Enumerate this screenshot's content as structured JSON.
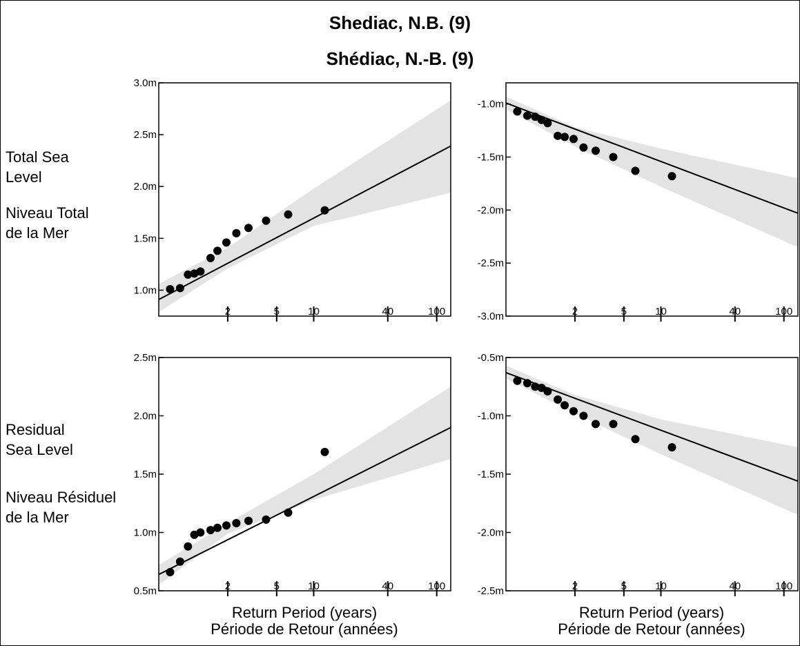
{
  "title_en": "Shediac, N.B. (9)",
  "title_fr": "Shédiac, N.-B. (9)",
  "row_labels": {
    "total_en": [
      "Total Sea",
      "Level"
    ],
    "total_fr": [
      "Niveau Total",
      "de la Mer"
    ],
    "residual_en": [
      "Residual",
      "Sea Level"
    ],
    "residual_fr": [
      "Niveau Résiduel",
      "de la Mer"
    ]
  },
  "xlabel_en": "Return Period (years)",
  "xlabel_fr": "Période de Retour (années)",
  "colors": {
    "band": "#e3e3e3",
    "line": "#000000",
    "points": "#000000"
  },
  "chart_data": [
    {
      "type": "scatter",
      "panel": "total-sea-level-high",
      "xscale": "log",
      "xlim": [
        0.55,
        130
      ],
      "ylim": [
        0.75,
        3.0
      ],
      "x_ticks": [
        2,
        5,
        10,
        40,
        100
      ],
      "y_ticks": [
        1.0,
        1.5,
        2.0,
        2.5,
        3.0
      ],
      "y_tick_labels": [
        "1.0m",
        "1.5m",
        "2.0m",
        "2.5m",
        "3.0m"
      ],
      "points": [
        [
          0.68,
          1.01
        ],
        [
          0.82,
          1.02
        ],
        [
          0.95,
          1.15
        ],
        [
          1.07,
          1.16
        ],
        [
          1.2,
          1.18
        ],
        [
          1.45,
          1.31
        ],
        [
          1.65,
          1.38
        ],
        [
          1.95,
          1.46
        ],
        [
          2.35,
          1.55
        ],
        [
          2.95,
          1.6
        ],
        [
          4.1,
          1.67
        ],
        [
          6.2,
          1.73
        ],
        [
          12.3,
          1.77
        ]
      ],
      "fit": [
        [
          0.55,
          0.91
        ],
        [
          130,
          2.39
        ]
      ],
      "band_upper": [
        [
          0.55,
          1.06
        ],
        [
          2,
          1.41
        ],
        [
          10,
          1.98
        ],
        [
          130,
          2.83
        ]
      ],
      "band_lower": [
        [
          0.55,
          0.79
        ],
        [
          2,
          1.21
        ],
        [
          10,
          1.62
        ],
        [
          130,
          1.94
        ]
      ]
    },
    {
      "type": "scatter",
      "panel": "total-sea-level-low",
      "xscale": "log",
      "xlim": [
        0.55,
        130
      ],
      "ylim": [
        -3.0,
        -0.8
      ],
      "x_ticks": [
        2,
        5,
        10,
        40,
        100
      ],
      "y_ticks": [
        -3.0,
        -2.5,
        -2.0,
        -1.5,
        -1.0
      ],
      "y_tick_labels": [
        "-3.0m",
        "-2.5m",
        "-2.0m",
        "-1.5m",
        "-1.0m"
      ],
      "points": [
        [
          0.68,
          -1.07
        ],
        [
          0.82,
          -1.11
        ],
        [
          0.95,
          -1.12
        ],
        [
          1.07,
          -1.15
        ],
        [
          1.2,
          -1.18
        ],
        [
          1.45,
          -1.3
        ],
        [
          1.65,
          -1.31
        ],
        [
          1.95,
          -1.33
        ],
        [
          2.35,
          -1.41
        ],
        [
          2.95,
          -1.44
        ],
        [
          4.1,
          -1.5
        ],
        [
          6.2,
          -1.63
        ],
        [
          12.3,
          -1.68
        ]
      ],
      "fit": [
        [
          0.55,
          -0.99
        ],
        [
          130,
          -2.03
        ]
      ],
      "band_upper": [
        [
          0.55,
          -0.93
        ],
        [
          2,
          -1.22
        ],
        [
          10,
          -1.42
        ],
        [
          130,
          -1.7
        ]
      ],
      "band_lower": [
        [
          0.55,
          -1.05
        ],
        [
          2,
          -1.4
        ],
        [
          10,
          -1.78
        ],
        [
          130,
          -2.35
        ]
      ]
    },
    {
      "type": "scatter",
      "panel": "residual-sea-level-high",
      "xscale": "log",
      "xlim": [
        0.55,
        130
      ],
      "ylim": [
        0.5,
        2.5
      ],
      "x_ticks": [
        2,
        5,
        10,
        40,
        100
      ],
      "y_ticks": [
        0.5,
        1.0,
        1.5,
        2.0,
        2.5
      ],
      "y_tick_labels": [
        "0.5m",
        "1.0m",
        "1.5m",
        "2.0m",
        "2.5m"
      ],
      "points": [
        [
          0.68,
          0.66
        ],
        [
          0.82,
          0.75
        ],
        [
          0.95,
          0.88
        ],
        [
          1.07,
          0.98
        ],
        [
          1.2,
          1.0
        ],
        [
          1.45,
          1.02
        ],
        [
          1.65,
          1.04
        ],
        [
          1.95,
          1.06
        ],
        [
          2.35,
          1.08
        ],
        [
          2.95,
          1.1
        ],
        [
          4.1,
          1.11
        ],
        [
          6.2,
          1.17
        ],
        [
          12.3,
          1.69
        ]
      ],
      "fit": [
        [
          0.55,
          0.64
        ],
        [
          130,
          1.9
        ]
      ],
      "band_upper": [
        [
          0.55,
          0.72
        ],
        [
          2,
          1.08
        ],
        [
          10,
          1.5
        ],
        [
          130,
          2.25
        ]
      ],
      "band_lower": [
        [
          0.55,
          0.55
        ],
        [
          2,
          0.99
        ],
        [
          10,
          1.28
        ],
        [
          130,
          1.63
        ]
      ]
    },
    {
      "type": "scatter",
      "panel": "residual-sea-level-low",
      "xscale": "log",
      "xlim": [
        0.55,
        130
      ],
      "ylim": [
        -2.5,
        -0.5
      ],
      "x_ticks": [
        2,
        5,
        10,
        40,
        100
      ],
      "y_ticks": [
        -2.5,
        -2.0,
        -1.5,
        -1.0,
        -0.5
      ],
      "y_tick_labels": [
        "-2.5m",
        "-2.0m",
        "-1.5m",
        "-1.0m",
        "-0.5m"
      ],
      "points": [
        [
          0.68,
          -0.7
        ],
        [
          0.82,
          -0.72
        ],
        [
          0.95,
          -0.75
        ],
        [
          1.07,
          -0.76
        ],
        [
          1.2,
          -0.79
        ],
        [
          1.45,
          -0.86
        ],
        [
          1.65,
          -0.91
        ],
        [
          1.95,
          -0.96
        ],
        [
          2.35,
          -1.0
        ],
        [
          2.95,
          -1.07
        ],
        [
          4.1,
          -1.07
        ],
        [
          6.2,
          -1.2
        ],
        [
          12.3,
          -1.27
        ]
      ],
      "fit": [
        [
          0.55,
          -0.63
        ],
        [
          130,
          -1.56
        ]
      ],
      "band_upper": [
        [
          0.55,
          -0.57
        ],
        [
          2,
          -0.82
        ],
        [
          10,
          -1.03
        ],
        [
          130,
          -1.27
        ]
      ],
      "band_lower": [
        [
          0.55,
          -0.68
        ],
        [
          2,
          -0.98
        ],
        [
          10,
          -1.33
        ],
        [
          130,
          -1.85
        ]
      ]
    }
  ]
}
